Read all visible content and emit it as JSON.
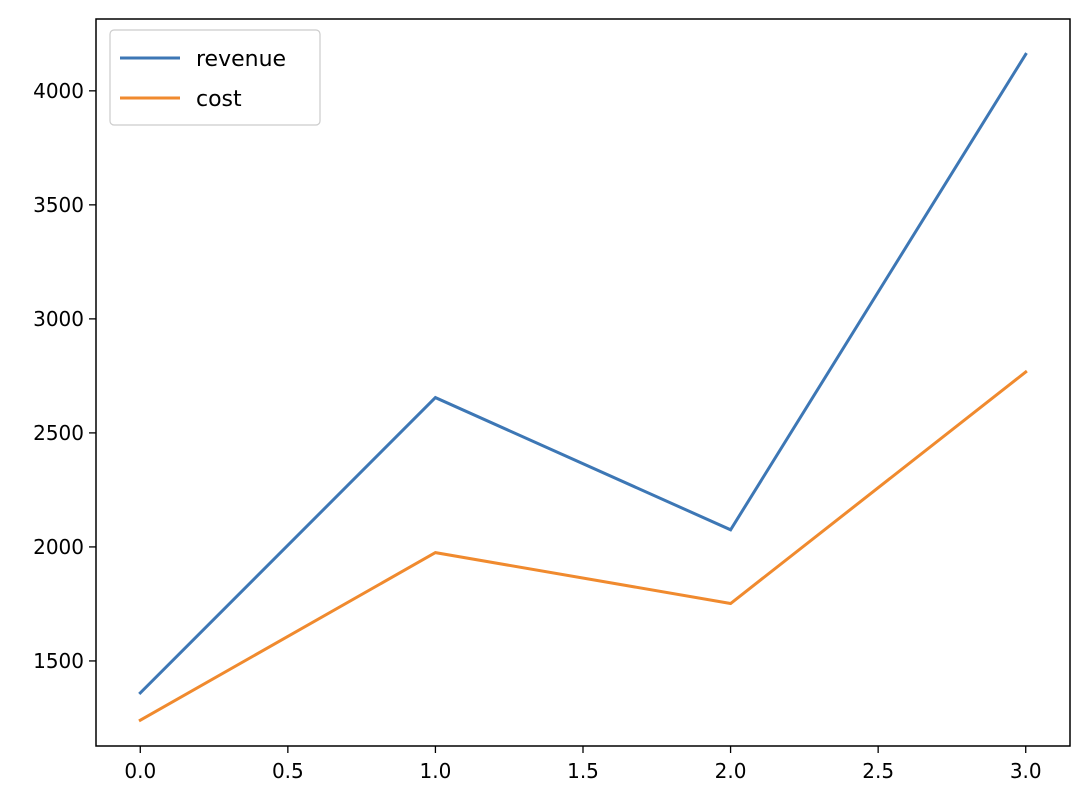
{
  "chart_data": {
    "type": "line",
    "title": "",
    "xlabel": "",
    "ylabel": "",
    "x": [
      0,
      1,
      2,
      3
    ],
    "series": [
      {
        "name": "revenue",
        "color": "#3d77b5",
        "values": [
          1360,
          2655,
          2075,
          4160
        ]
      },
      {
        "name": "cost",
        "color": "#f08a2e",
        "values": [
          1240,
          1975,
          1752,
          2767
        ]
      }
    ],
    "xlim": [
      -0.15,
      3.15
    ],
    "ylim": [
      1127,
      4315
    ],
    "xticks": [
      0.0,
      0.5,
      1.0,
      1.5,
      2.0,
      2.5,
      3.0
    ],
    "xtick_labels": [
      "0.0",
      "0.5",
      "1.0",
      "1.5",
      "2.0",
      "2.5",
      "3.0"
    ],
    "yticks": [
      1500,
      2000,
      2500,
      3000,
      3500,
      4000
    ],
    "ytick_labels": [
      "1500",
      "2000",
      "2500",
      "3000",
      "3500",
      "4000"
    ],
    "grid": false,
    "legend": {
      "position": "top-left"
    }
  }
}
